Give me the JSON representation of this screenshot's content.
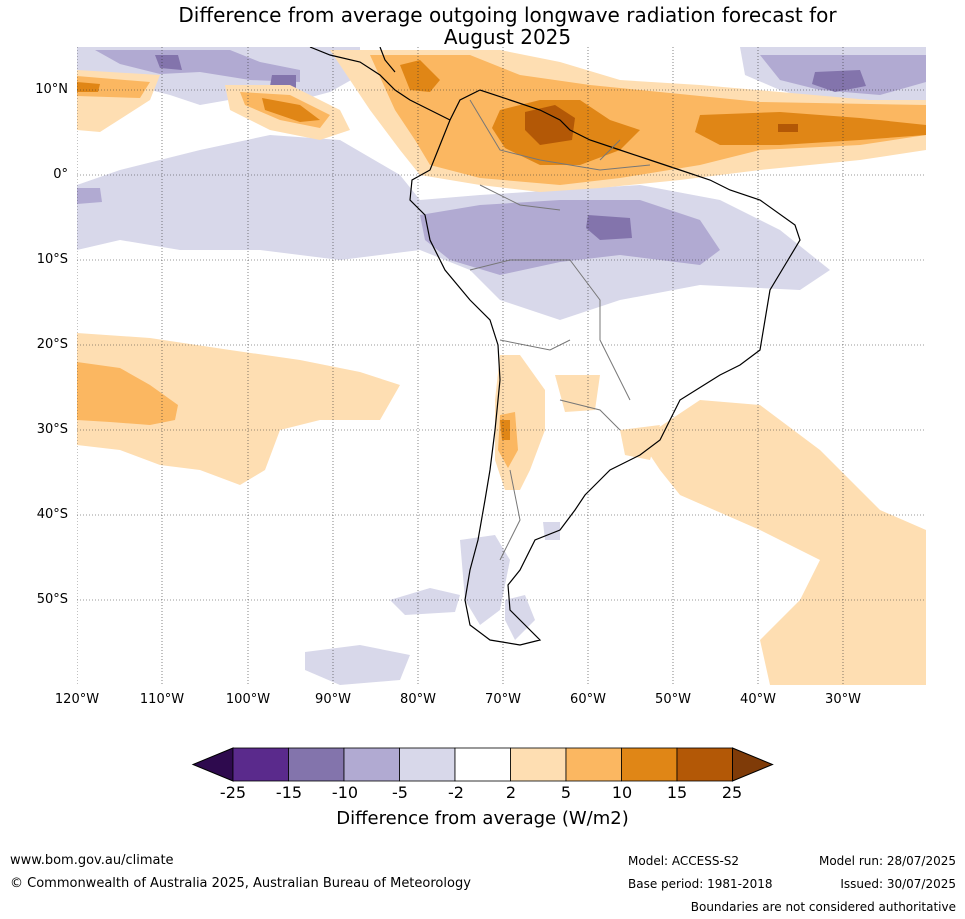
{
  "title_line1": "Difference from average outgoing longwave radiation forecast for",
  "title_line2": "August 2025",
  "lat_labels": [
    "10°N",
    "0°",
    "10°S",
    "20°S",
    "30°S",
    "40°S",
    "50°S"
  ],
  "lon_labels": [
    "120°W",
    "110°W",
    "100°W",
    "90°W",
    "80°W",
    "70°W",
    "60°W",
    "50°W",
    "40°W",
    "30°W"
  ],
  "legend": {
    "title": "Difference from average (W/m2)",
    "ticks": [
      "-25",
      "-15",
      "-10",
      "-5",
      "-2",
      "2",
      "5",
      "10",
      "15",
      "25"
    ],
    "colors": [
      "#2e0a4e",
      "#5a2a8c",
      "#8374ac",
      "#b1aad2",
      "#d8d8ea",
      "#ffffff",
      "#fedeb2",
      "#fbb761",
      "#e08616",
      "#b35806",
      "#7f3b08"
    ]
  },
  "footer": {
    "website": "www.bom.gov.au/climate",
    "copyright": "© Commonwealth of Australia 2025, Australian Bureau of Meteorology",
    "model": "Model: ACCESS-S2",
    "base_period": "Base period: 1981-2018",
    "model_run": "Model run: 28/07/2025",
    "issued": "Issued: 30/07/2025",
    "disclaimer": "Boundaries are not considered authoritative"
  }
}
